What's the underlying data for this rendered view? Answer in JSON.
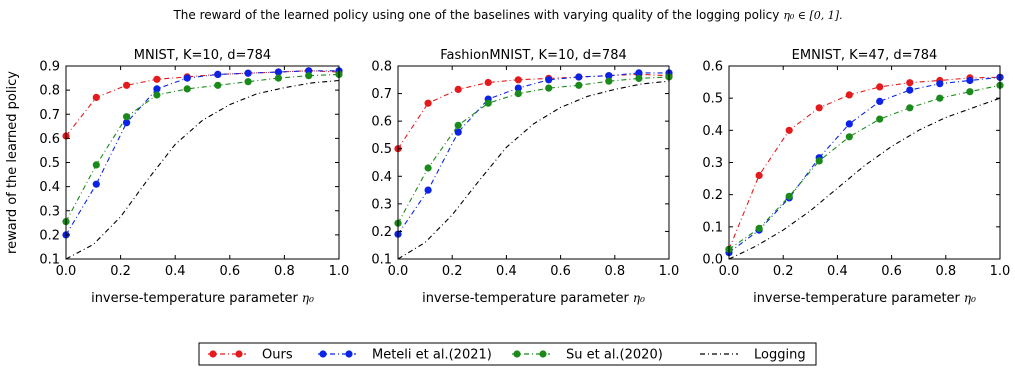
{
  "figure": {
    "suptitle": "The reward of the learned policy using one of the baselines with varying quality of the logging policy",
    "suptitle_math": "η₀ ∈ [0, 1]."
  },
  "legend": {
    "placement": "bottom-center",
    "items": [
      {
        "label": "Ours",
        "color": "#e41a1c",
        "style": "dash-dot-markers"
      },
      {
        "label": "Meteli et al.(2021)",
        "color": "#0a23e6",
        "style": "dash-dot-markers"
      },
      {
        "label": "Su et al.(2020)",
        "color": "#1a8a1a",
        "style": "dash-dot-markers"
      },
      {
        "label": "Logging",
        "color": "#000000",
        "style": "dash-dot"
      }
    ]
  },
  "chart_data": [
    {
      "type": "line",
      "title": "MNIST, K=10, d=784",
      "xlabel": "inverse-temperature parameter",
      "xlabel_math": "η₀",
      "ylabel": "reward of the learned policy",
      "xlim": [
        0,
        1
      ],
      "ylim": [
        0.1,
        0.9
      ],
      "xticks": [
        "0.0",
        "0.2",
        "0.4",
        "0.6",
        "0.8",
        "1.0"
      ],
      "yticks": [
        "0.1",
        "0.2",
        "0.3",
        "0.4",
        "0.5",
        "0.6",
        "0.7",
        "0.8",
        "0.9"
      ],
      "grid": false,
      "x": [
        0,
        0.111,
        0.222,
        0.333,
        0.444,
        0.556,
        0.667,
        0.778,
        0.889,
        1.0
      ],
      "series": [
        {
          "name": "Ours",
          "values": [
            0.61,
            0.77,
            0.82,
            0.845,
            0.855,
            0.865,
            0.87,
            0.875,
            0.88,
            0.875
          ]
        },
        {
          "name": "Meteli et al.(2021)",
          "values": [
            0.2,
            0.41,
            0.665,
            0.805,
            0.85,
            0.865,
            0.87,
            0.875,
            0.88,
            0.88
          ]
        },
        {
          "name": "Su et al.(2020)",
          "values": [
            0.255,
            0.49,
            0.69,
            0.78,
            0.805,
            0.82,
            0.835,
            0.85,
            0.86,
            0.865
          ]
        }
      ],
      "logging": {
        "name": "Logging",
        "x": [
          0,
          0.1,
          0.2,
          0.3,
          0.4,
          0.5,
          0.6,
          0.7,
          0.8,
          0.9,
          1.0
        ],
        "values": [
          0.1,
          0.16,
          0.275,
          0.43,
          0.575,
          0.675,
          0.74,
          0.785,
          0.81,
          0.83,
          0.84
        ]
      }
    },
    {
      "type": "line",
      "title": "FashionMNIST, K=10, d=784",
      "xlabel": "inverse-temperature parameter",
      "xlabel_math": "η₀",
      "ylabel": "",
      "xlim": [
        0,
        1
      ],
      "ylim": [
        0.1,
        0.8
      ],
      "xticks": [
        "0.0",
        "0.2",
        "0.4",
        "0.6",
        "0.8",
        "1.0"
      ],
      "yticks": [
        "0.1",
        "0.2",
        "0.3",
        "0.4",
        "0.5",
        "0.6",
        "0.7",
        "0.8"
      ],
      "grid": false,
      "x": [
        0,
        0.111,
        0.222,
        0.333,
        0.444,
        0.556,
        0.667,
        0.778,
        0.889,
        1.0
      ],
      "series": [
        {
          "name": "Ours",
          "values": [
            0.5,
            0.665,
            0.715,
            0.74,
            0.75,
            0.755,
            0.76,
            0.765,
            0.77,
            0.765
          ]
        },
        {
          "name": "Meteli et al.(2021)",
          "values": [
            0.19,
            0.35,
            0.56,
            0.68,
            0.72,
            0.75,
            0.76,
            0.765,
            0.775,
            0.775
          ]
        },
        {
          "name": "Su et al.(2020)",
          "values": [
            0.23,
            0.43,
            0.585,
            0.665,
            0.7,
            0.72,
            0.73,
            0.745,
            0.755,
            0.76
          ]
        }
      ],
      "logging": {
        "name": "Logging",
        "x": [
          0,
          0.1,
          0.2,
          0.3,
          0.4,
          0.5,
          0.6,
          0.7,
          0.8,
          0.9,
          1.0
        ],
        "values": [
          0.1,
          0.16,
          0.26,
          0.385,
          0.505,
          0.59,
          0.65,
          0.69,
          0.715,
          0.735,
          0.745
        ]
      }
    },
    {
      "type": "line",
      "title": "EMNIST, K=47, d=784",
      "xlabel": "inverse-temperature parameter",
      "xlabel_math": "η₀",
      "ylabel": "",
      "xlim": [
        0,
        1
      ],
      "ylim": [
        0.0,
        0.6
      ],
      "xticks": [
        "0.0",
        "0.2",
        "0.4",
        "0.6",
        "0.8",
        "1.0"
      ],
      "yticks": [
        "0.0",
        "0.1",
        "0.2",
        "0.3",
        "0.4",
        "0.5",
        "0.6"
      ],
      "grid": false,
      "x": [
        0,
        0.111,
        0.222,
        0.333,
        0.444,
        0.556,
        0.667,
        0.778,
        0.889,
        1.0
      ],
      "series": [
        {
          "name": "Ours",
          "values": [
            0.03,
            0.26,
            0.4,
            0.47,
            0.51,
            0.535,
            0.548,
            0.555,
            0.563,
            0.565
          ]
        },
        {
          "name": "Meteli et al.(2021)",
          "values": [
            0.02,
            0.09,
            0.19,
            0.315,
            0.42,
            0.49,
            0.525,
            0.545,
            0.555,
            0.565
          ]
        },
        {
          "name": "Su et al.(2020)",
          "values": [
            0.03,
            0.095,
            0.195,
            0.305,
            0.38,
            0.435,
            0.47,
            0.5,
            0.52,
            0.54
          ]
        }
      ],
      "logging": {
        "name": "Logging",
        "x": [
          0,
          0.1,
          0.2,
          0.3,
          0.4,
          0.5,
          0.6,
          0.7,
          0.8,
          0.9,
          1.0
        ],
        "values": [
          0.0,
          0.04,
          0.09,
          0.15,
          0.22,
          0.29,
          0.35,
          0.4,
          0.44,
          0.47,
          0.5
        ]
      }
    }
  ]
}
